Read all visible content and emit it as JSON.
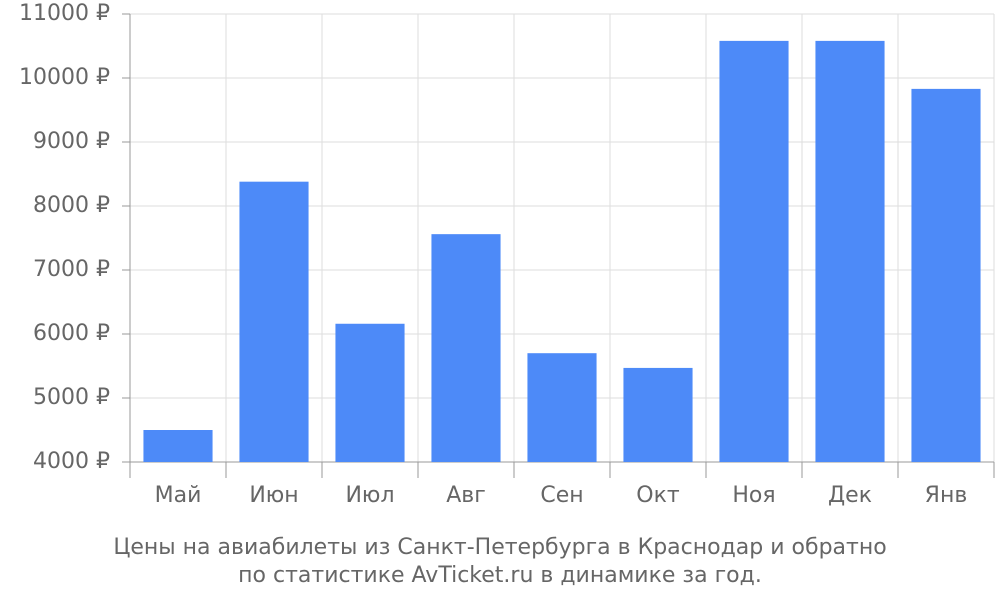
{
  "chart_data": {
    "type": "bar",
    "title": [
      "Цены на авиабилеты из Санкт-Петербурга в Краснодар и обратно",
      "по статистике AvTicket.ru в динамике за год."
    ],
    "categories": [
      "Май",
      "Июн",
      "Июл",
      "Авг",
      "Сен",
      "Окт",
      "Ноя",
      "Дек",
      "Янв"
    ],
    "values": [
      4500,
      8380,
      6160,
      7560,
      5700,
      5470,
      10580,
      10580,
      9830
    ],
    "color": "#4d8af8",
    "ylim": [
      4000,
      11000
    ],
    "yticks": [
      {
        "value": 4000,
        "label": "4000 ₽"
      },
      {
        "value": 5000,
        "label": "5000 ₽"
      },
      {
        "value": 6000,
        "label": "6000 ₽"
      },
      {
        "value": 7000,
        "label": "7000 ₽"
      },
      {
        "value": 8000,
        "label": "8000 ₽"
      },
      {
        "value": 9000,
        "label": "9000 ₽"
      },
      {
        "value": 10000,
        "label": "10000 ₽"
      },
      {
        "value": 11000,
        "label": "11000 ₽"
      }
    ],
    "grid": true
  }
}
